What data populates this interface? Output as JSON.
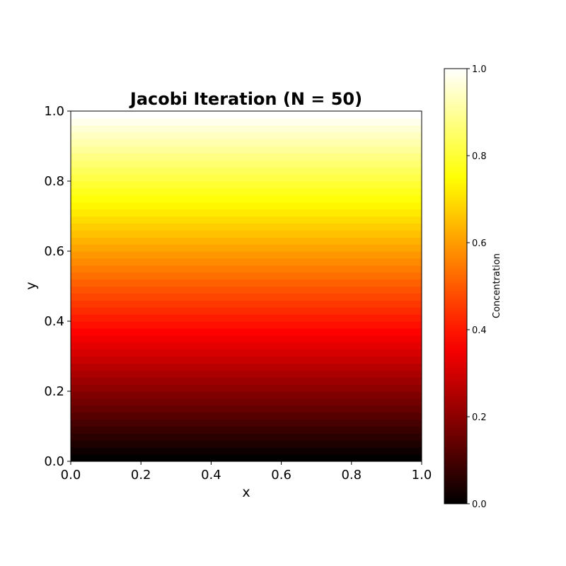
{
  "chart_data": {
    "type": "heatmap",
    "title": "Jacobi Iteration (N = 50)",
    "xlabel": "x",
    "ylabel": "y",
    "xlim": [
      0.0,
      1.0
    ],
    "ylim": [
      0.0,
      1.0
    ],
    "xticks": [
      "0.0",
      "0.2",
      "0.4",
      "0.6",
      "0.8",
      "1.0"
    ],
    "yticks": [
      "0.0",
      "0.2",
      "0.4",
      "0.6",
      "0.8",
      "1.0"
    ],
    "grid": false,
    "colormap": "hot",
    "grid_size": 50,
    "field_description": "Concentration varies linearly with y: c(x, y) = y, constant along x",
    "colorbar": {
      "label": "Concentration",
      "range": [
        0.0,
        1.0
      ],
      "ticks": [
        "0.0",
        "0.2",
        "0.4",
        "0.6",
        "0.8",
        "1.0"
      ]
    }
  }
}
